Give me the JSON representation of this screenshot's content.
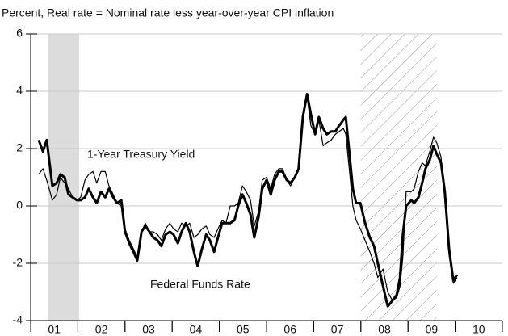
{
  "chart_data": {
    "type": "line",
    "title": "Percent, Real rate = Nominal rate less year-over-year CPI inflation",
    "annotations": [
      "1-Year Treasury Yield",
      "Federal Funds Rate"
    ],
    "xlim": [
      2001,
      2011
    ],
    "xticks": [
      {
        "value": 2001.5,
        "label": "01"
      },
      {
        "value": 2002.5,
        "label": "02"
      },
      {
        "value": 2003.5,
        "label": "03"
      },
      {
        "value": 2004.5,
        "label": "04"
      },
      {
        "value": 2005.5,
        "label": "05"
      },
      {
        "value": 2006.5,
        "label": "06"
      },
      {
        "value": 2007.5,
        "label": "07"
      },
      {
        "value": 2008.5,
        "label": "08"
      },
      {
        "value": 2009.5,
        "label": "09"
      },
      {
        "value": 2010.5,
        "label": "10"
      }
    ],
    "ylim": [
      -4,
      6
    ],
    "yticks": [
      -4,
      -2,
      0,
      2,
      4,
      6
    ],
    "grid": true,
    "shaded_periods": [
      {
        "xlim": [
          2001.36,
          2002.03
        ],
        "style": "solid",
        "color": "#dcdcdc"
      },
      {
        "xlim": [
          2008.0,
          2009.61
        ],
        "style": "hatch",
        "color": "#888888"
      }
    ],
    "x": [
      2001.17,
      2001.26,
      2001.34,
      2001.46,
      2001.55,
      2001.63,
      2001.72,
      2001.8,
      2001.89,
      2001.98,
      2002.06,
      2002.15,
      2002.23,
      2002.32,
      2002.4,
      2002.49,
      2002.58,
      2002.66,
      2002.75,
      2002.83,
      2002.92,
      2003.0,
      2003.09,
      2003.18,
      2003.26,
      2003.35,
      2003.43,
      2003.52,
      2003.6,
      2003.69,
      2003.77,
      2003.86,
      2003.95,
      2004.03,
      2004.12,
      2004.2,
      2004.29,
      2004.37,
      2004.46,
      2004.54,
      2004.63,
      2004.72,
      2004.8,
      2004.89,
      2004.97,
      2005.06,
      2005.14,
      2005.23,
      2005.32,
      2005.4,
      2005.49,
      2005.57,
      2005.66,
      2005.74,
      2005.83,
      2005.91,
      2006.0,
      2006.09,
      2006.17,
      2006.26,
      2006.34,
      2006.43,
      2006.51,
      2006.6,
      2006.68,
      2006.77,
      2006.86,
      2006.94,
      2007.03,
      2007.11,
      2007.2,
      2007.28,
      2007.37,
      2007.46,
      2007.54,
      2007.63,
      2007.68,
      2007.76,
      2007.83,
      2007.9,
      2007.99,
      2008.09,
      2008.19,
      2008.28,
      2008.36,
      2008.47,
      2008.57,
      2008.67,
      2008.76,
      2008.83,
      2008.89,
      2008.96,
      2009.07,
      2009.13,
      2009.22,
      2009.3,
      2009.37,
      2009.46,
      2009.54,
      2009.61,
      2009.7,
      2009.78,
      2009.87,
      2009.96,
      2010.04
    ],
    "series": [
      {
        "name": "1-Year Treasury Yield",
        "color": "#000000",
        "width": 1.2,
        "values": [
          1.1,
          1.3,
          0.9,
          0.2,
          0.4,
          1.0,
          0.8,
          0.6,
          0.3,
          0.2,
          0.3,
          0.9,
          1.1,
          1.2,
          0.8,
          1.2,
          1.2,
          0.7,
          0.4,
          0.1,
          0.0,
          -0.8,
          -1.2,
          -1.5,
          -1.8,
          -0.9,
          -0.6,
          -0.9,
          -0.9,
          -1.0,
          -1.2,
          -0.8,
          -0.6,
          -0.8,
          -0.9,
          -0.6,
          -0.7,
          -0.6,
          -1.1,
          -1.0,
          -0.8,
          -0.7,
          -1.0,
          -1.1,
          -0.8,
          -0.5,
          -0.6,
          0.0,
          0.0,
          0.1,
          0.7,
          0.5,
          0.2,
          -0.7,
          -0.2,
          0.9,
          1.0,
          0.6,
          1.1,
          1.3,
          1.3,
          0.9,
          0.7,
          1.0,
          1.3,
          3.2,
          3.8,
          2.8,
          2.5,
          3.0,
          2.1,
          2.2,
          2.3,
          2.5,
          2.6,
          2.7,
          2.5,
          1.2,
          0.0,
          -0.5,
          -0.8,
          -1.2,
          -1.6,
          -2.0,
          -2.5,
          -2.2,
          -3.0,
          -3.3,
          -3.2,
          -2.8,
          -1.8,
          0.5,
          0.5,
          0.6,
          1.2,
          1.5,
          1.4,
          1.9,
          2.4,
          2.2,
          1.7,
          0.2,
          -1.7,
          -2.7,
          -2.5
        ]
      },
      {
        "name": "Federal Funds Rate",
        "color": "#000000",
        "width": 3,
        "values": [
          2.3,
          1.9,
          2.3,
          0.7,
          0.8,
          1.1,
          1.0,
          0.4,
          0.3,
          0.2,
          0.2,
          0.3,
          0.6,
          0.3,
          0.1,
          0.5,
          0.3,
          0.6,
          0.3,
          0.1,
          0.2,
          -0.9,
          -1.3,
          -1.6,
          -1.9,
          -0.9,
          -0.7,
          -0.9,
          -1.1,
          -1.2,
          -1.4,
          -1.0,
          -0.9,
          -1.0,
          -1.3,
          -0.9,
          -0.6,
          -0.9,
          -1.6,
          -2.1,
          -1.5,
          -1.0,
          -1.2,
          -1.6,
          -1.1,
          -0.6,
          -0.6,
          -0.6,
          -0.5,
          0.0,
          0.4,
          0.1,
          -0.3,
          -1.1,
          -0.4,
          0.6,
          0.9,
          0.4,
          0.9,
          1.2,
          1.2,
          0.9,
          0.8,
          1.0,
          1.3,
          3.1,
          3.9,
          3.2,
          2.5,
          3.1,
          2.7,
          2.5,
          2.6,
          2.6,
          2.8,
          3.0,
          3.1,
          1.8,
          0.6,
          0.1,
          0.1,
          -0.6,
          -1.1,
          -1.4,
          -2.0,
          -2.8,
          -3.5,
          -3.3,
          -3.1,
          -2.5,
          -1.0,
          0.0,
          0.2,
          0.1,
          0.3,
          0.8,
          1.3,
          1.6,
          2.1,
          1.8,
          1.5,
          0.5,
          -1.5,
          -2.6,
          -2.4
        ]
      }
    ]
  }
}
